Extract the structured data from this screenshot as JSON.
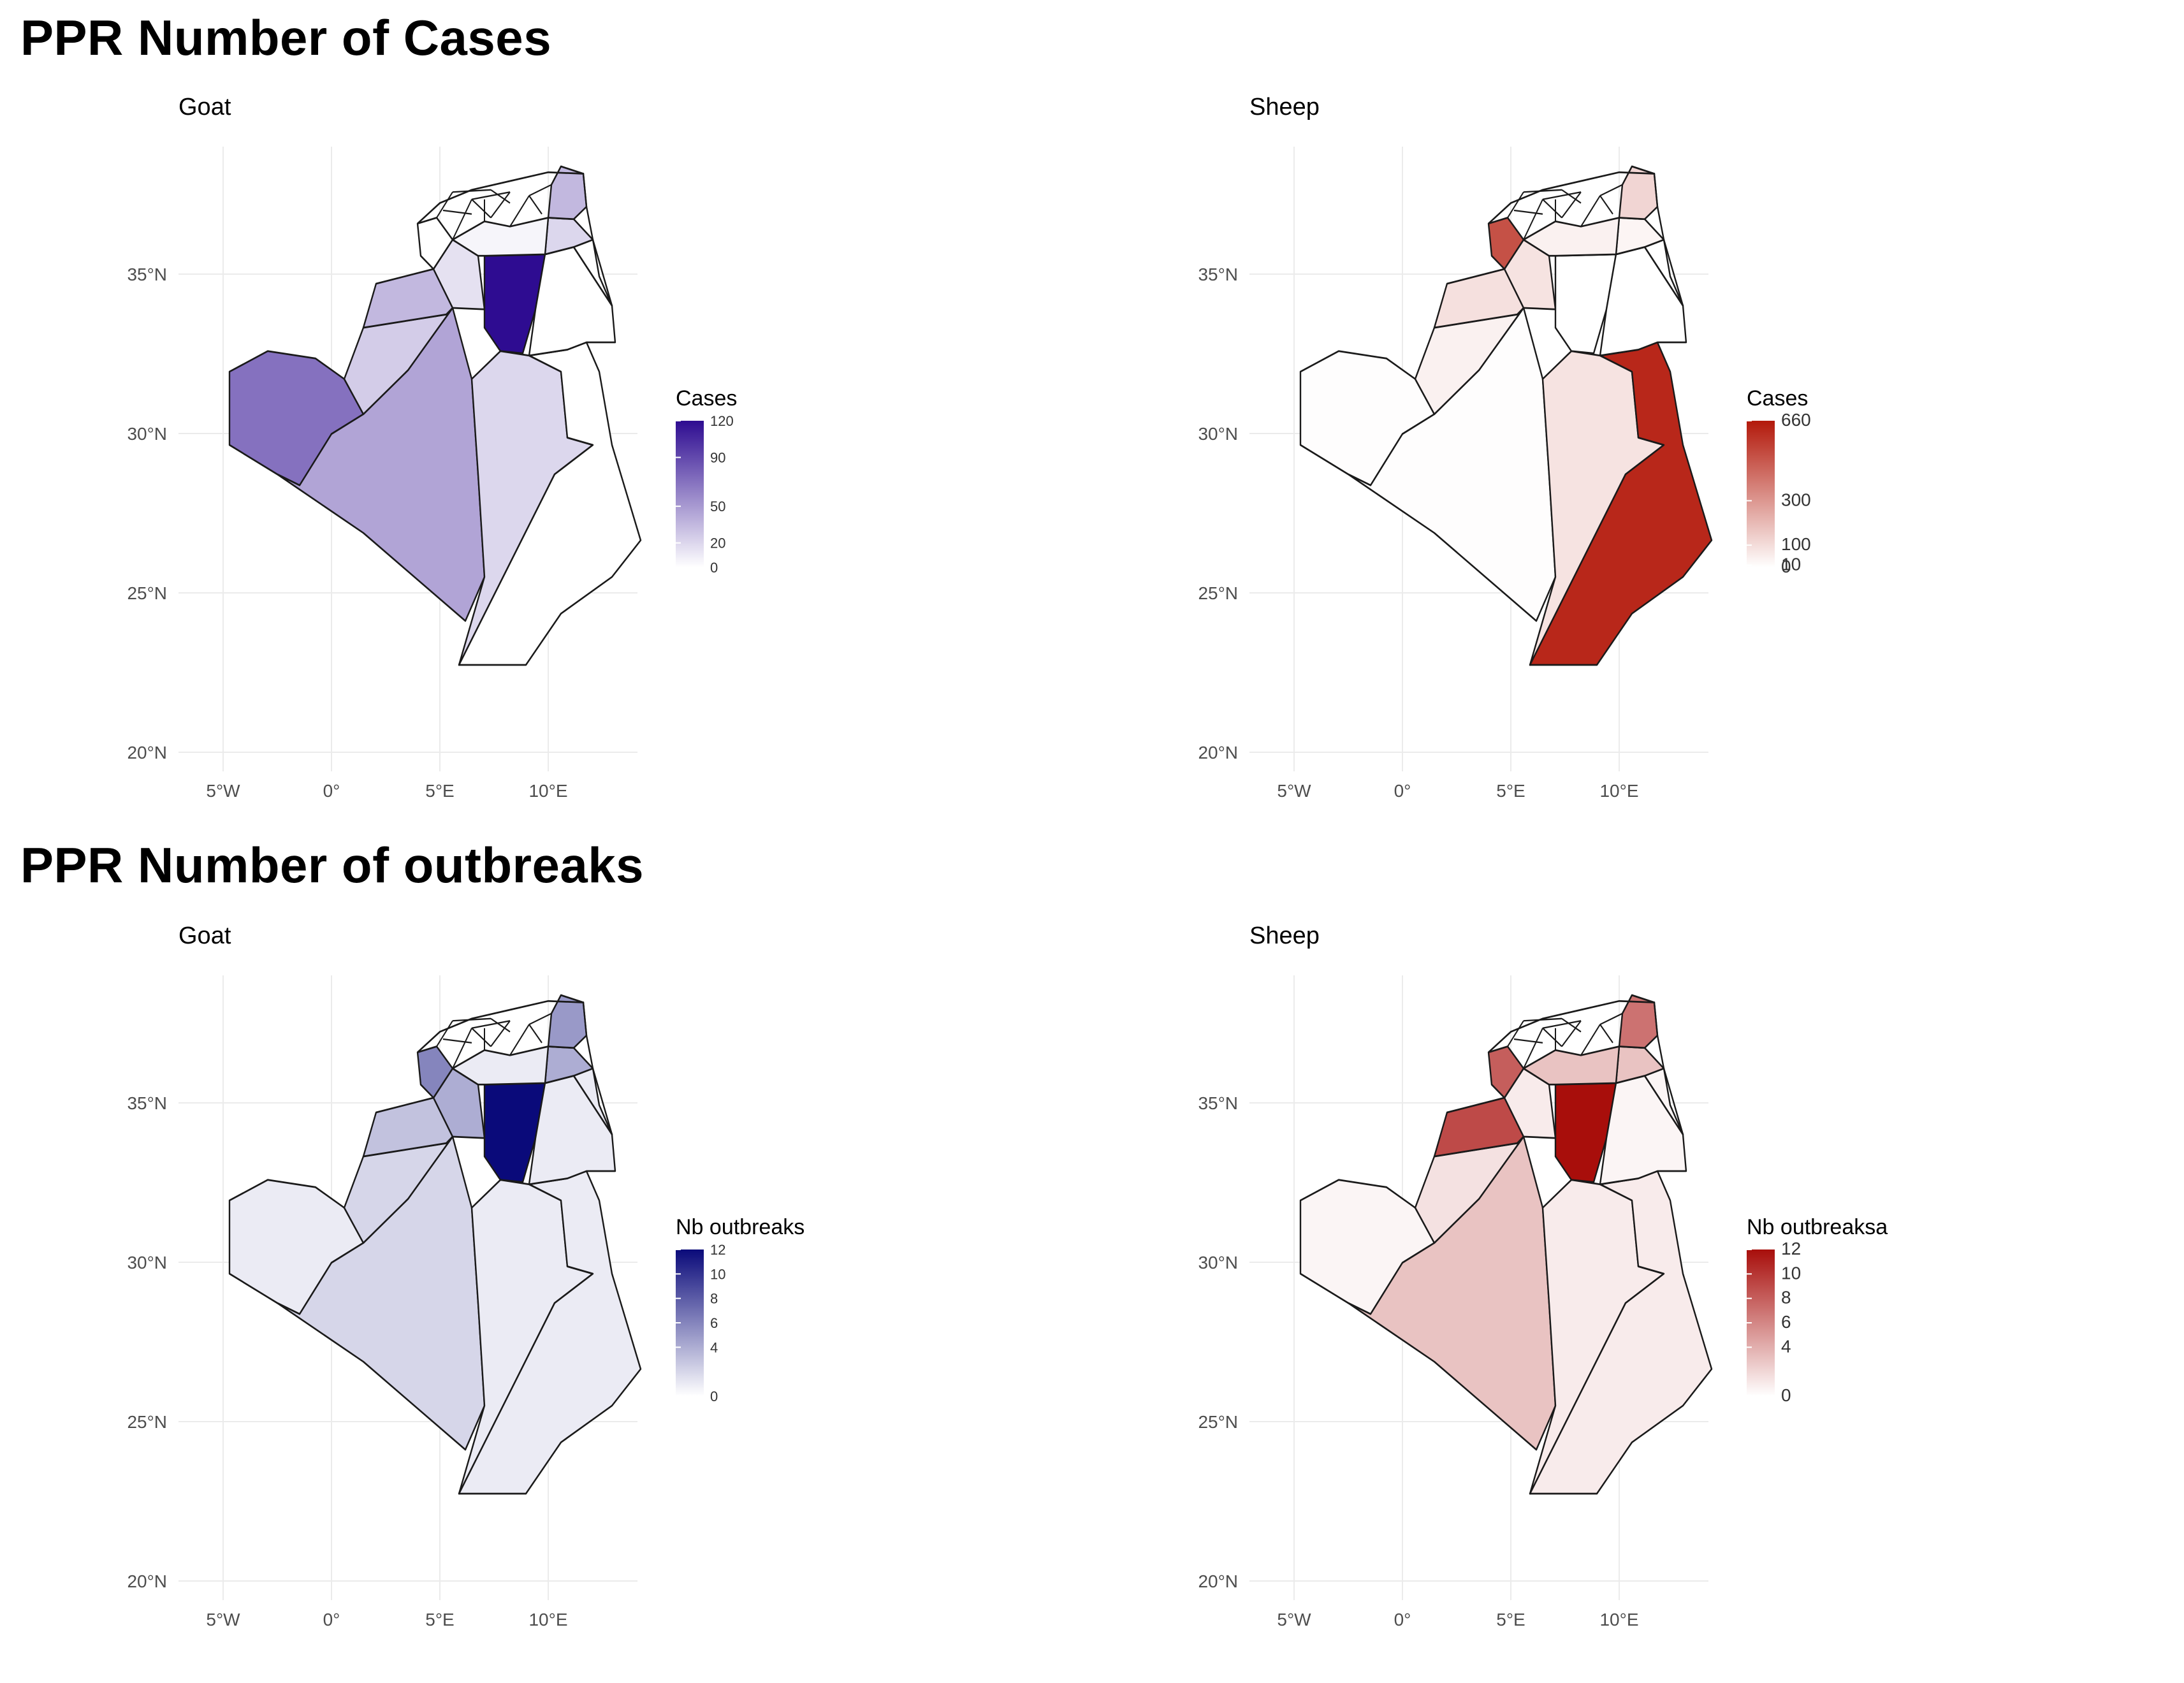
{
  "headings": {
    "cases": "PPR Number of Cases",
    "outbreaks": "PPR Number of outbreaks"
  },
  "axes": {
    "x_ticks": [
      "5°W",
      "0°",
      "5°E",
      "10°E"
    ],
    "y_ticks": [
      "20°N",
      "25°N",
      "30°N",
      "35°N"
    ]
  },
  "panels": {
    "goat_cases": {
      "title": "Goat",
      "legend_title": "Cases",
      "scale_max": 120,
      "legend_ticks": [
        {
          "label": "120",
          "value": 120
        },
        {
          "label": "90",
          "value": 90
        },
        {
          "label": "50",
          "value": 50
        },
        {
          "label": "20",
          "value": 20
        },
        {
          "label": "0",
          "value": 0
        }
      ],
      "color_low": "#ffffff",
      "color_high": "#2e0c91",
      "values": {
        "far_southwest": 70,
        "southwest": 45,
        "south_central": 20,
        "southeast": 0,
        "west_north": 25,
        "central_west": 35,
        "central_north": 15,
        "central_east": 0,
        "east_strip": 0,
        "dark_central": 120,
        "east_north": 20,
        "northwest_coast": 0,
        "north_east": 35,
        "north_central": 5
      }
    },
    "sheep_cases": {
      "title": "Sheep",
      "legend_title": "Cases",
      "scale_max": 660,
      "legend_ticks": [
        {
          "label": "660",
          "value": 660
        },
        {
          "label": "300",
          "value": 300
        },
        {
          "label": "100",
          "value": 100
        },
        {
          "label": "10",
          "value": 10
        },
        {
          "label": "0",
          "value": 0
        }
      ],
      "color_low": "#ffffff",
      "color_high": "#b3190b",
      "values": {
        "far_southwest": 5,
        "southwest": 5,
        "south_central": 80,
        "southeast": 620,
        "west_north": 40,
        "central_west": 90,
        "central_north": 80,
        "central_east": 0,
        "east_strip": 0,
        "dark_central": 0,
        "east_north": 30,
        "northwest_coast": 500,
        "north_east": 120,
        "north_central": 40
      }
    },
    "goat_outbreaks": {
      "title": "Goat",
      "legend_title": "Nb outbreaks",
      "scale_max": 12,
      "legend_ticks": [
        {
          "label": "12",
          "value": 12
        },
        {
          "label": "10",
          "value": 10
        },
        {
          "label": "8",
          "value": 8
        },
        {
          "label": "6",
          "value": 6
        },
        {
          "label": "4",
          "value": 4
        },
        {
          "label": "0",
          "value": 0
        }
      ],
      "color_low": "#ffffff",
      "color_high": "#0a0a7a",
      "values": {
        "far_southwest": 1,
        "southwest": 2,
        "south_central": 1,
        "southeast": 1,
        "west_north": 2,
        "central_west": 3,
        "central_north": 4,
        "central_east": 1,
        "east_strip": 1,
        "dark_central": 12,
        "east_north": 4,
        "northwest_coast": 6,
        "north_east": 5,
        "north_central": 1
      }
    },
    "sheep_outbreaks": {
      "title": "Sheep",
      "legend_title": "Nb outbreaksa",
      "scale_max": 12,
      "legend_ticks": [
        {
          "label": "12",
          "value": 12
        },
        {
          "label": "10",
          "value": 10
        },
        {
          "label": "8",
          "value": 8
        },
        {
          "label": "6",
          "value": 6
        },
        {
          "label": "4",
          "value": 4
        },
        {
          "label": "0",
          "value": 0
        }
      ],
      "color_low": "#ffffff",
      "color_high": "#a80e0b",
      "values": {
        "far_southwest": 0.5,
        "southwest": 3,
        "south_central": 1,
        "southeast": 1,
        "west_north": 1.5,
        "central_west": 9,
        "central_north": 1,
        "central_east": 0.5,
        "east_strip": 0.5,
        "dark_central": 12,
        "east_north": 3,
        "northwest_coast": 8,
        "north_east": 7,
        "north_central": 3
      }
    }
  }
}
